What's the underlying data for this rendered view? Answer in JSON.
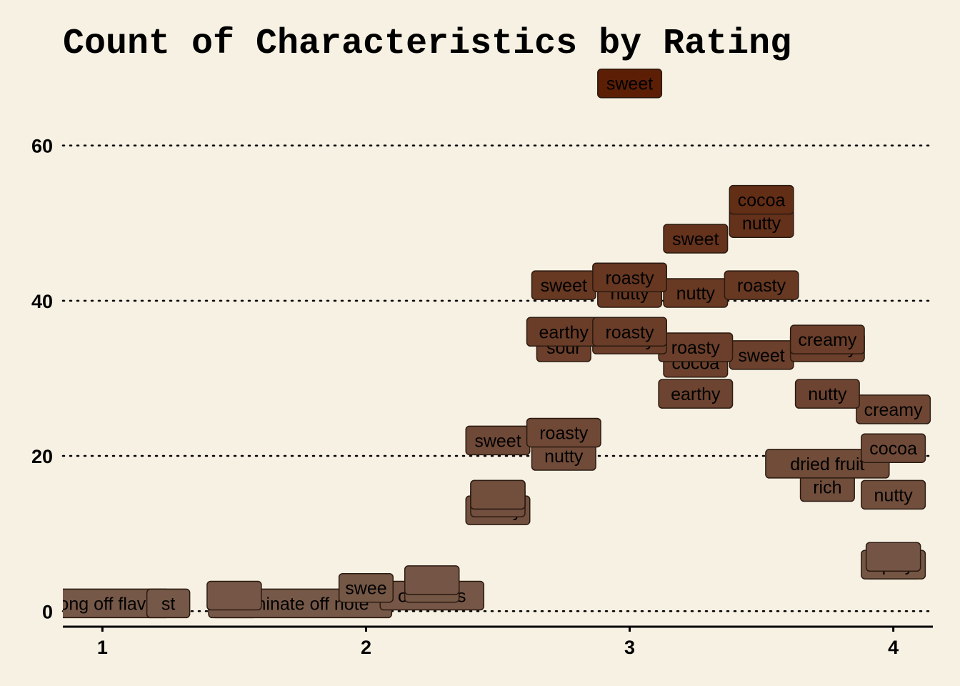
{
  "chart_data": {
    "type": "scatter",
    "title": "Count of Characteristics by Rating",
    "xlabel": "",
    "ylabel": "",
    "xlim": [
      0.85,
      4.15
    ],
    "ylim": [
      -2,
      70
    ],
    "x_ticks": [
      1,
      2,
      3,
      4
    ],
    "y_ticks": [
      0,
      20,
      40,
      60
    ],
    "grid": "horizontal dotted",
    "legend": "none",
    "colors": {
      "background": "#f7f1e3",
      "low": "#765848",
      "high": "#5c1f05",
      "label_border": "#2a1a10"
    },
    "points": [
      {
        "label": "sweet",
        "x": 3.0,
        "y": 68
      },
      {
        "label": "cocoa",
        "x": 3.5,
        "y": 53
      },
      {
        "label": "nutty",
        "x": 3.5,
        "y": 50
      },
      {
        "label": "sweet",
        "x": 3.25,
        "y": 48
      },
      {
        "label": "roasty",
        "x": 3.0,
        "y": 43
      },
      {
        "label": "sweet",
        "x": 2.75,
        "y": 42
      },
      {
        "label": "nutty",
        "x": 3.0,
        "y": 41
      },
      {
        "label": "nutty",
        "x": 3.25,
        "y": 41
      },
      {
        "label": "roasty",
        "x": 3.5,
        "y": 42
      },
      {
        "label": "earthy",
        "x": 2.75,
        "y": 36
      },
      {
        "label": "sour",
        "x": 2.75,
        "y": 34
      },
      {
        "label": "roasty",
        "x": 3.0,
        "y": 36
      },
      {
        "label": "earthy",
        "x": 3.0,
        "y": 35
      },
      {
        "label": "roasty",
        "x": 3.25,
        "y": 34
      },
      {
        "label": "cocoa",
        "x": 3.25,
        "y": 32
      },
      {
        "label": "sweet",
        "x": 3.5,
        "y": 33
      },
      {
        "label": "creamy",
        "x": 3.75,
        "y": 35
      },
      {
        "label": "creamy",
        "x": 3.75,
        "y": 34
      },
      {
        "label": "earthy",
        "x": 3.25,
        "y": 28
      },
      {
        "label": "nutty",
        "x": 3.75,
        "y": 28
      },
      {
        "label": "creamy",
        "x": 4.0,
        "y": 26
      },
      {
        "label": "sweet",
        "x": 2.5,
        "y": 22
      },
      {
        "label": "roasty",
        "x": 2.75,
        "y": 23
      },
      {
        "label": "nutty",
        "x": 2.75,
        "y": 20
      },
      {
        "label": "cocoa",
        "x": 4.0,
        "y": 21
      },
      {
        "label": "dried fruit",
        "x": 3.75,
        "y": 19
      },
      {
        "label": "rich",
        "x": 3.75,
        "y": 16
      },
      {
        "label": "nutty",
        "x": 4.0,
        "y": 15
      },
      {
        "label": "",
        "x": 2.5,
        "y": 15
      },
      {
        "label": "",
        "x": 2.5,
        "y": 15
      },
      {
        "label": "",
        "x": 2.5,
        "y": 14
      },
      {
        "label": "sandy",
        "x": 2.5,
        "y": 13
      },
      {
        "label": "",
        "x": 4.0,
        "y": 7
      },
      {
        "label": "",
        "x": 4.0,
        "y": 6
      },
      {
        "label": "spicy",
        "x": 4.0,
        "y": 6
      },
      {
        "label": "",
        "x": 2.25,
        "y": 4
      },
      {
        "label": "",
        "x": 2.25,
        "y": 3
      },
      {
        "label": "m",
        "x": 2.0,
        "y": 3
      },
      {
        "label": "swee",
        "x": 2.0,
        "y": 3
      },
      {
        "label": "off notes",
        "x": 2.25,
        "y": 2
      },
      {
        "label": "",
        "x": 1.5,
        "y": 2
      },
      {
        "label": "ong off flav",
        "x": 1.0,
        "y": 1
      },
      {
        "label": "st",
        "x": 1.25,
        "y": 1
      },
      {
        "label": "unp",
        "x": 1.5,
        "y": 1
      },
      {
        "label": "dominate off note",
        "x": 1.75,
        "y": 1
      }
    ]
  }
}
